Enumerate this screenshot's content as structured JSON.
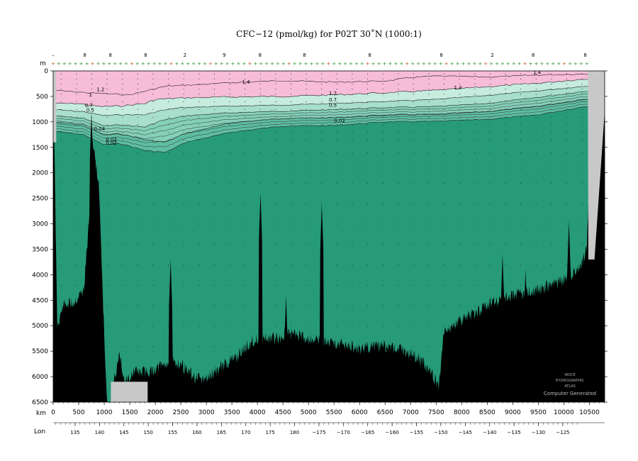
{
  "chart_data": {
    "type": "contour section",
    "title": "CFC−12 (pmol/kg) for P02T 30˚N (1000:1)",
    "y_axis_unit": "m",
    "x_axis_unit": "km",
    "x2_axis_label": "Lon",
    "ylim": [
      6500,
      0
    ],
    "xlim": [
      0,
      10800
    ],
    "y_ticks": [
      0,
      500,
      1000,
      1500,
      2000,
      2500,
      3000,
      3500,
      4000,
      4500,
      5000,
      5500,
      6000,
      6500
    ],
    "x_ticks": [
      0,
      500,
      1000,
      1500,
      2000,
      2500,
      3000,
      3500,
      4000,
      4500,
      5000,
      5500,
      6000,
      6500,
      7000,
      7500,
      8000,
      8500,
      9000,
      9500,
      10000,
      10500
    ],
    "lon_ticks": [
      {
        "lon": 135,
        "label": "135"
      },
      {
        "lon": 140,
        "label": "140"
      },
      {
        "lon": 145,
        "label": "145"
      },
      {
        "lon": 150,
        "label": "150"
      },
      {
        "lon": 155,
        "label": "155"
      },
      {
        "lon": 160,
        "label": "160"
      },
      {
        "lon": 165,
        "label": "165"
      },
      {
        "lon": 170,
        "label": "170"
      },
      {
        "lon": 175,
        "label": "175"
      },
      {
        "lon": 180,
        "label": "180"
      },
      {
        "lon": -175,
        "label": "−175"
      },
      {
        "lon": -170,
        "label": "−170"
      },
      {
        "lon": -165,
        "label": "−165"
      },
      {
        "lon": -160,
        "label": "−160"
      },
      {
        "lon": -155,
        "label": "−155"
      },
      {
        "lon": -150,
        "label": "−150"
      },
      {
        "lon": -145,
        "label": "−145"
      },
      {
        "lon": -140,
        "label": "−140"
      },
      {
        "lon": -135,
        "label": "−135"
      },
      {
        "lon": -130,
        "label": "−130"
      },
      {
        "lon": -125,
        "label": "−125"
      }
    ],
    "contour_labels": [
      {
        "text": "1.4",
        "x": 3700,
        "y": 250
      },
      {
        "text": "1.4",
        "x": 7850,
        "y": 360
      },
      {
        "text": "1.4",
        "x": 9400,
        "y": 60
      },
      {
        "text": "1.2",
        "x": 850,
        "y": 400
      },
      {
        "text": "1.2",
        "x": 5400,
        "y": 470
      },
      {
        "text": "1",
        "x": 700,
        "y": 500
      },
      {
        "text": "0.7",
        "x": 620,
        "y": 710
      },
      {
        "text": "0.5",
        "x": 650,
        "y": 800
      },
      {
        "text": "0.04",
        "x": 800,
        "y": 1170
      },
      {
        "text": "0.02",
        "x": 1030,
        "y": 1380
      },
      {
        "text": "0.02",
        "x": 1030,
        "y": 1450
      },
      {
        "text": "0.7",
        "x": 5400,
        "y": 600
      },
      {
        "text": "0.5",
        "x": 5400,
        "y": 700
      },
      {
        "text": "0.02",
        "x": 5500,
        "y": 1010
      }
    ],
    "station_marks": [
      "–",
      "8",
      "8",
      "8",
      "2",
      "9",
      "8",
      "8",
      "8",
      "8",
      "2",
      "8",
      "8"
    ],
    "fill_colors": {
      "surface": "#f7bcd8",
      "band1": "#c6ebdf",
      "band2": "#a7dfcc",
      "band3": "#85d0b6",
      "band4": "#5fbea0",
      "deep": "#279a78",
      "land": "#000000",
      "gap": "#c8c8c8"
    },
    "stamp_text": [
      "WOCE",
      "HYDROGRAPHIC",
      "ATLAS",
      "Computer Generated"
    ]
  }
}
